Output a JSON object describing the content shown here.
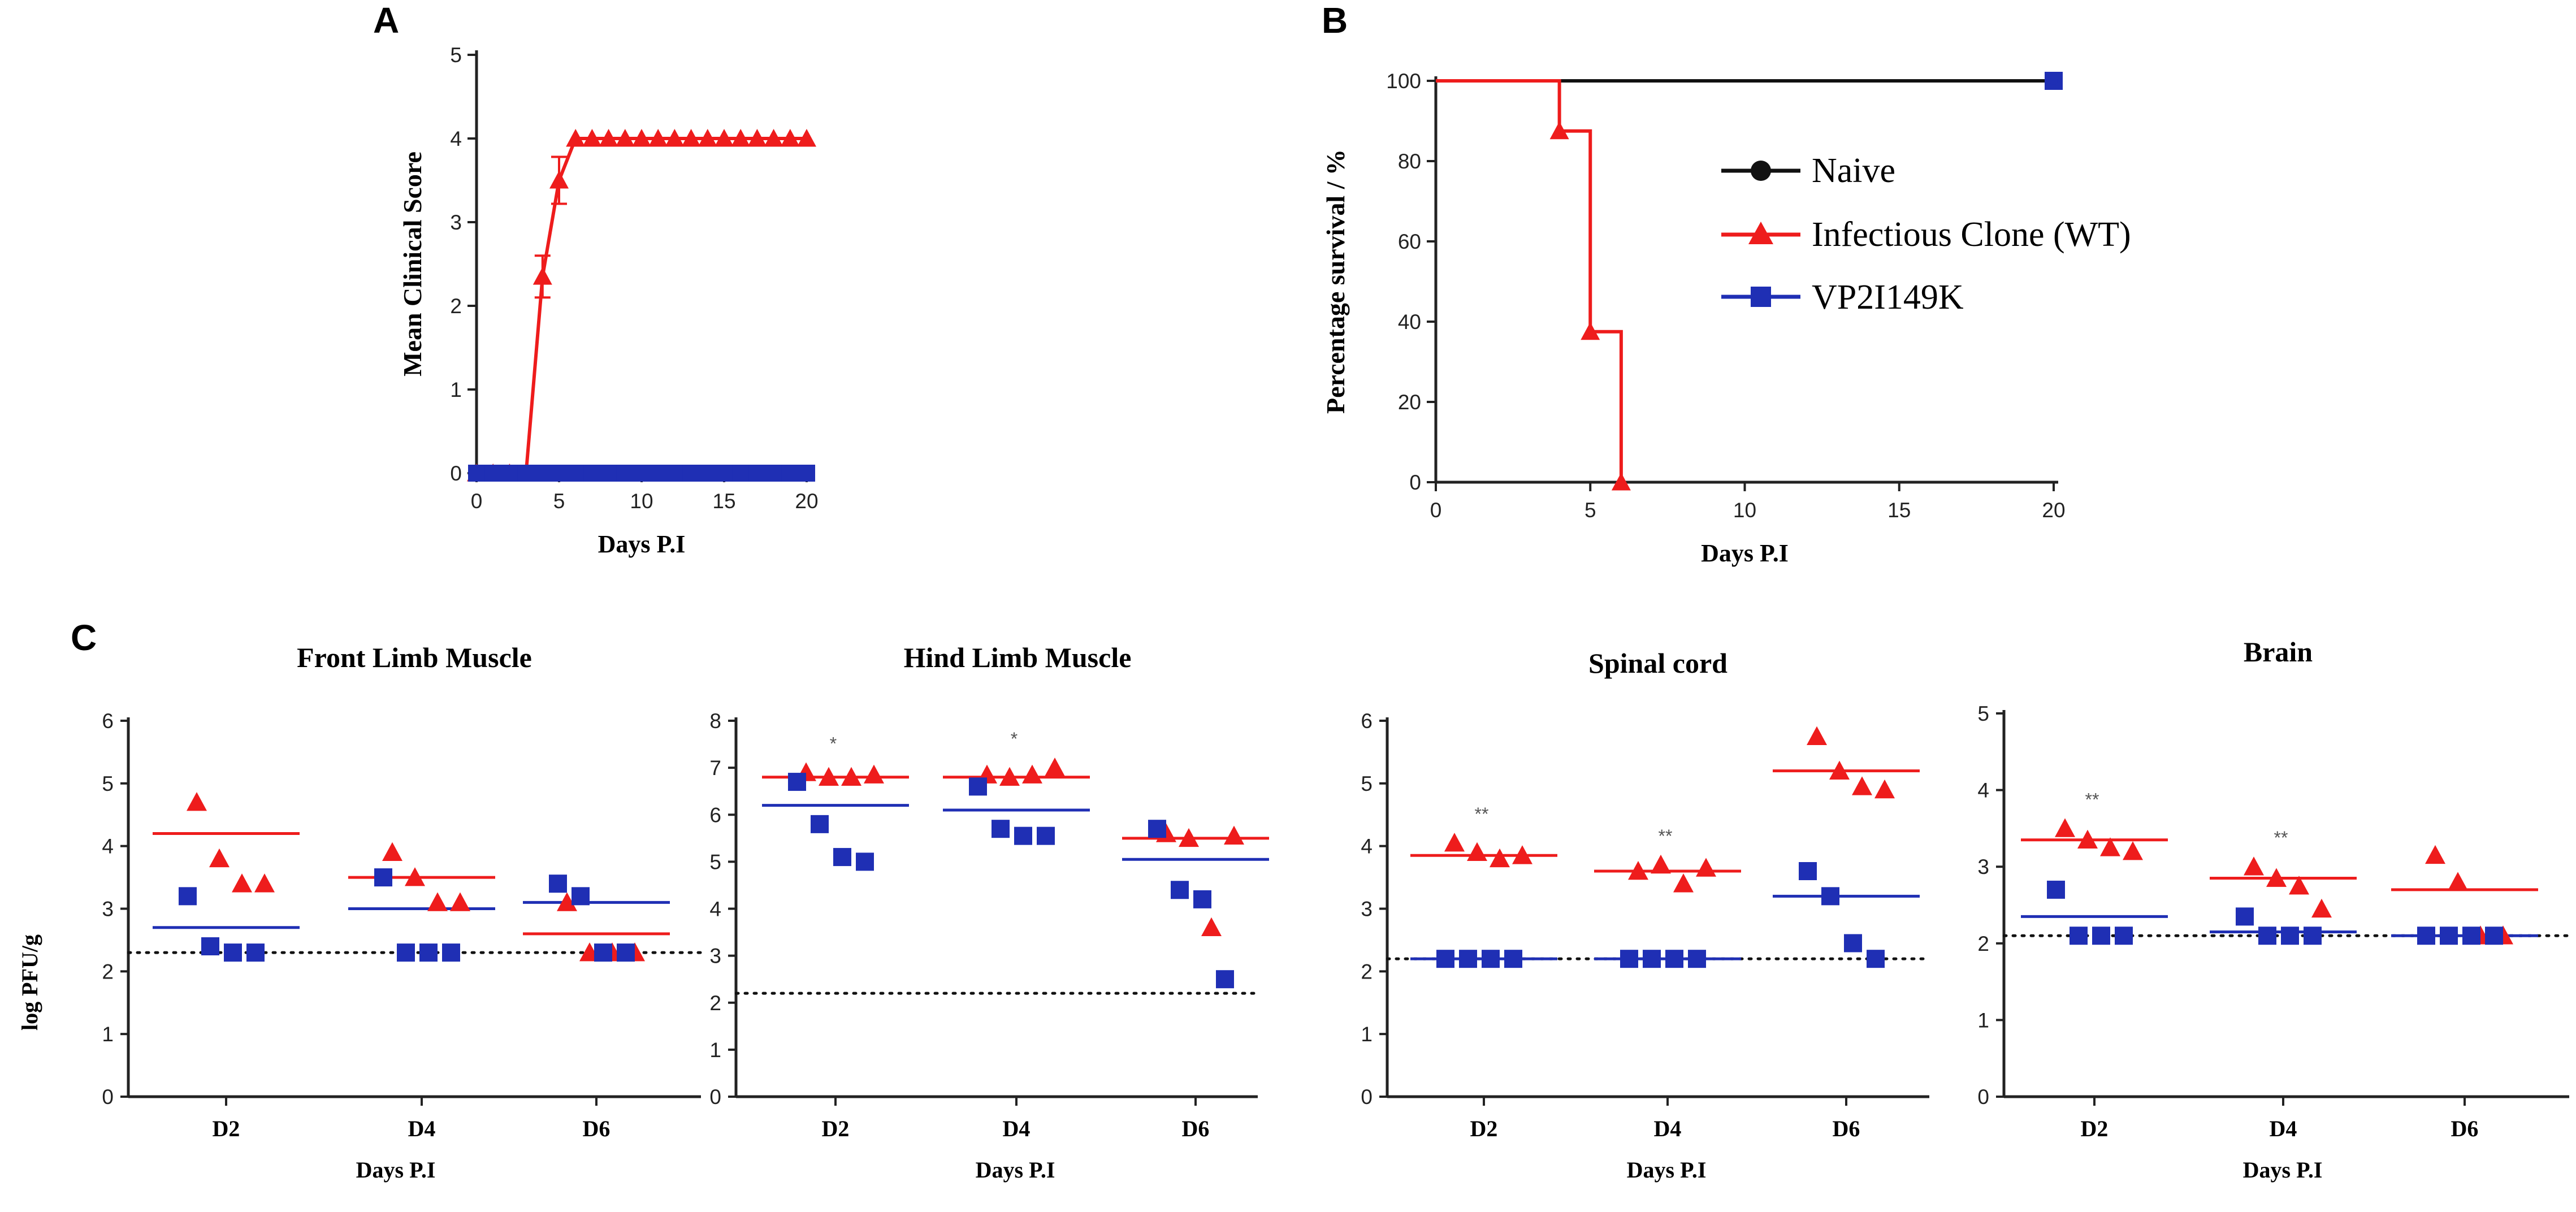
{
  "panel_labels": {
    "a": "A",
    "b": "B",
    "c": "C"
  },
  "colors": {
    "wt": "#ee1c1c",
    "mutant": "#1f2fb4",
    "naive": "#111111",
    "axis": "#222222"
  },
  "legend": {
    "naive": "Naive",
    "wt": "Infectious Clone (WT)",
    "mutant": "VP2I149K"
  },
  "chart_data": [
    {
      "id": "A",
      "type": "line",
      "title": "",
      "xlabel": "Days P.I",
      "ylabel": "Mean Clinical Score",
      "xlim": [
        0,
        20
      ],
      "ylim": [
        0,
        5
      ],
      "xticks": [
        0,
        5,
        10,
        15,
        20
      ],
      "yticks": [
        0,
        1,
        2,
        3,
        4,
        5
      ],
      "series": [
        {
          "name": "Infectious Clone (WT)",
          "x": [
            0,
            1,
            2,
            3,
            4,
            5,
            6,
            7,
            8,
            9,
            10,
            11,
            12,
            13,
            14,
            15,
            16,
            17,
            18,
            19,
            20
          ],
          "y": [
            0,
            0,
            0,
            0,
            2.35,
            3.5,
            4,
            4,
            4,
            4,
            4,
            4,
            4,
            4,
            4,
            4,
            4,
            4,
            4,
            4,
            4
          ],
          "err": [
            0,
            0,
            0,
            0,
            0.25,
            0.28,
            0,
            0,
            0,
            0,
            0,
            0,
            0,
            0,
            0,
            0,
            0,
            0,
            0,
            0,
            0
          ]
        },
        {
          "name": "VP2I149K",
          "x": [
            0,
            1,
            2,
            3,
            4,
            5,
            6,
            7,
            8,
            9,
            10,
            11,
            12,
            13,
            14,
            15,
            16,
            17,
            18,
            19,
            20
          ],
          "y": [
            0,
            0,
            0,
            0,
            0,
            0,
            0,
            0,
            0,
            0,
            0,
            0,
            0,
            0,
            0,
            0,
            0,
            0,
            0,
            0,
            0
          ]
        }
      ]
    },
    {
      "id": "B",
      "type": "line",
      "title": "",
      "xlabel": "Days P.I",
      "ylabel": "Percentage survival / %",
      "xlim": [
        0,
        20
      ],
      "ylim": [
        0,
        100
      ],
      "xticks": [
        0,
        5,
        10,
        15,
        20
      ],
      "yticks": [
        0,
        20,
        40,
        60,
        80,
        100
      ],
      "series": [
        {
          "name": "Naive",
          "steps": [
            [
              0,
              100
            ],
            [
              20,
              100
            ]
          ]
        },
        {
          "name": "Infectious Clone (WT)",
          "steps": [
            [
              0,
              100
            ],
            [
              4,
              87.5
            ],
            [
              5,
              37.5
            ],
            [
              6,
              0
            ]
          ]
        },
        {
          "name": "VP2I149K",
          "steps": [
            [
              0,
              100
            ],
            [
              20,
              100
            ]
          ]
        }
      ]
    },
    {
      "id": "C1",
      "type": "scatter",
      "title": "Front Limb Muscle",
      "xlabel": "Days P.I",
      "ylabel": "log PFU/g",
      "categories": [
        "D2",
        "D4",
        "D6"
      ],
      "ylim": [
        0,
        6
      ],
      "yticks": [
        0,
        1,
        2,
        3,
        4,
        5,
        6
      ],
      "detection_limit": 2.3,
      "significance": [
        "",
        "",
        ""
      ],
      "series": [
        {
          "name": "Infectious Clone (WT)",
          "points": [
            [
              4.7,
              3.8,
              3.4,
              3.4
            ],
            [
              3.9,
              3.5,
              3.1,
              3.1
            ],
            [
              3.1,
              2.3,
              2.3,
              2.3
            ]
          ],
          "means": [
            4.2,
            3.5,
            2.6
          ]
        },
        {
          "name": "VP2I149K",
          "points": [
            [
              3.2,
              2.4,
              2.3,
              2.3
            ],
            [
              3.5,
              2.3,
              2.3,
              2.3
            ],
            [
              3.4,
              3.2,
              2.3,
              2.3
            ]
          ],
          "means": [
            2.7,
            3.0,
            3.1
          ]
        }
      ]
    },
    {
      "id": "C2",
      "type": "scatter",
      "title": "Hind Limb Muscle",
      "xlabel": "Days P.I",
      "ylabel": "",
      "categories": [
        "D2",
        "D4",
        "D6"
      ],
      "ylim": [
        0,
        8
      ],
      "yticks": [
        0,
        1,
        2,
        3,
        4,
        5,
        6,
        7,
        8
      ],
      "detection_limit": 2.2,
      "significance": [
        "*",
        "*",
        ""
      ],
      "series": [
        {
          "name": "Infectious Clone (WT)",
          "points": [
            [
              6.9,
              6.8,
              6.8,
              6.85
            ],
            [
              6.85,
              6.8,
              6.85,
              7.0
            ],
            [
              5.6,
              5.5,
              3.6,
              5.55
            ]
          ],
          "means": [
            6.8,
            6.8,
            5.5
          ]
        },
        {
          "name": "VP2I149K",
          "points": [
            [
              6.7,
              5.8,
              5.1,
              5.0
            ],
            [
              6.6,
              5.7,
              5.55,
              5.55
            ],
            [
              5.7,
              4.4,
              4.2,
              2.5
            ]
          ],
          "means": [
            6.2,
            6.1,
            5.05
          ]
        }
      ]
    },
    {
      "id": "C3",
      "type": "scatter",
      "title": "Spinal cord",
      "xlabel": "Days P.I",
      "ylabel": "",
      "categories": [
        "D2",
        "D4",
        "D6"
      ],
      "ylim": [
        0,
        6
      ],
      "yticks": [
        0,
        1,
        2,
        3,
        4,
        5,
        6
      ],
      "detection_limit": 2.2,
      "significance": [
        "**",
        "**",
        ""
      ],
      "series": [
        {
          "name": "Infectious Clone (WT)",
          "points": [
            [
              4.05,
              3.9,
              3.8,
              3.85
            ],
            [
              3.6,
              3.7,
              3.4,
              3.65
            ],
            [
              5.75,
              5.2,
              4.95,
              4.9
            ]
          ],
          "means": [
            3.85,
            3.6,
            5.2
          ]
        },
        {
          "name": "VP2I149K",
          "points": [
            [
              2.2,
              2.2,
              2.2,
              2.2
            ],
            [
              2.2,
              2.2,
              2.2,
              2.2
            ],
            [
              3.6,
              3.2,
              2.45,
              2.2
            ]
          ],
          "means": [
            2.2,
            2.2,
            3.2
          ]
        }
      ]
    },
    {
      "id": "C4",
      "type": "scatter",
      "title": "Brain",
      "xlabel": "Days P.I",
      "ylabel": "",
      "categories": [
        "D2",
        "D4",
        "D6"
      ],
      "ylim": [
        0,
        5
      ],
      "yticks": [
        0,
        1,
        2,
        3,
        4,
        5
      ],
      "detection_limit": 2.1,
      "significance": [
        "**",
        "**",
        ""
      ],
      "series": [
        {
          "name": "Infectious Clone (WT)",
          "points": [
            [
              3.5,
              3.35,
              3.25,
              3.2
            ],
            [
              3.0,
              2.85,
              2.75,
              2.45
            ],
            [
              3.15,
              2.8,
              2.1,
              2.1
            ]
          ],
          "means": [
            3.35,
            2.85,
            2.7
          ]
        },
        {
          "name": "VP2I149K",
          "points": [
            [
              2.7,
              2.1,
              2.1,
              2.1
            ],
            [
              2.35,
              2.1,
              2.1,
              2.1
            ],
            [
              2.1,
              2.1,
              2.1,
              2.1
            ]
          ],
          "means": [
            2.35,
            2.15,
            2.1
          ]
        }
      ]
    }
  ]
}
